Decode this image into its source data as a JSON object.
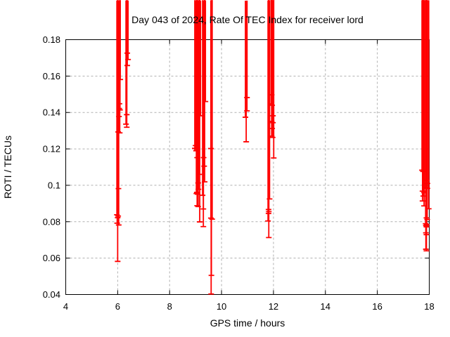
{
  "chart_data": {
    "type": "scatter",
    "title": "Day 043 of 2024, Rate Of TEC Index for receiver lord",
    "xlabel": "GPS time / hours",
    "ylabel": "ROTI / TECUs",
    "xlim": [
      4,
      18
    ],
    "ylim": [
      0.04,
      0.18
    ],
    "xticks": [
      4,
      6,
      8,
      10,
      12,
      14,
      16,
      18
    ],
    "yticks": [
      0.04,
      0.06,
      0.08,
      0.1,
      0.12,
      0.14,
      0.16,
      0.18
    ],
    "grid": true,
    "grid_style": "dashed",
    "legend": "none",
    "marker": "plus",
    "series": [
      {
        "name": "ROTI",
        "points": [
          [
            6.37,
            0.1726
          ],
          [
            6.4,
            0.1691
          ],
          [
            6.37,
            0.1658
          ],
          [
            6.1,
            0.1581
          ],
          [
            6.07,
            0.1448
          ],
          [
            6.06,
            0.1422
          ],
          [
            6.09,
            0.1414
          ],
          [
            6.35,
            0.1388
          ],
          [
            6.05,
            0.1378
          ],
          [
            6.32,
            0.1336
          ],
          [
            6.35,
            0.1319
          ],
          [
            6.02,
            0.1293
          ],
          [
            6.08,
            0.1288
          ],
          [
            6.03,
            0.0982
          ],
          [
            5.97,
            0.0838
          ],
          [
            6.02,
            0.0831
          ],
          [
            6.0,
            0.0822
          ],
          [
            5.98,
            0.0792
          ],
          [
            6.04,
            0.0782
          ],
          [
            6.0,
            0.0582
          ],
          [
            9.38,
            0.146
          ],
          [
            9.19,
            0.1382
          ],
          [
            9.07,
            0.1262
          ],
          [
            9.0,
            0.1218
          ],
          [
            9.07,
            0.1208
          ],
          [
            8.97,
            0.1203
          ],
          [
            9.05,
            0.1197
          ],
          [
            9.02,
            0.119
          ],
          [
            9.59,
            0.1202
          ],
          [
            9.06,
            0.1152
          ],
          [
            9.31,
            0.1152
          ],
          [
            9.33,
            0.1105
          ],
          [
            9.14,
            0.106
          ],
          [
            9.1,
            0.1013
          ],
          [
            9.35,
            0.1019
          ],
          [
            9.11,
            0.0978
          ],
          [
            9.05,
            0.0961
          ],
          [
            9.03,
            0.0955
          ],
          [
            9.08,
            0.0951
          ],
          [
            9.27,
            0.0945
          ],
          [
            9.06,
            0.0888
          ],
          [
            9.1,
            0.0883
          ],
          [
            9.3,
            0.087
          ],
          [
            9.59,
            0.082
          ],
          [
            9.64,
            0.0814
          ],
          [
            9.16,
            0.0799
          ],
          [
            9.3,
            0.0773
          ],
          [
            9.61,
            0.0505
          ],
          [
            9.6,
            0.0403
          ],
          [
            10.98,
            0.1482
          ],
          [
            10.98,
            0.1409
          ],
          [
            10.92,
            0.1374
          ],
          [
            10.95,
            0.1239
          ],
          [
            11.93,
            0.1497
          ],
          [
            11.91,
            0.1447
          ],
          [
            11.95,
            0.144
          ],
          [
            11.98,
            0.1382
          ],
          [
            11.93,
            0.1351
          ],
          [
            11.98,
            0.1344
          ],
          [
            11.95,
            0.1312
          ],
          [
            11.93,
            0.127
          ],
          [
            11.97,
            0.1263
          ],
          [
            12.01,
            0.115
          ],
          [
            11.85,
            0.0925
          ],
          [
            11.81,
            0.0867
          ],
          [
            11.82,
            0.0855
          ],
          [
            11.81,
            0.0845
          ],
          [
            11.79,
            0.0804
          ],
          [
            11.82,
            0.0713
          ],
          [
            17.72,
            0.1083
          ],
          [
            17.76,
            0.1076
          ],
          [
            17.91,
            0.1027
          ],
          [
            17.93,
            0.101
          ],
          [
            17.85,
            0.0987
          ],
          [
            17.93,
            0.0983
          ],
          [
            17.74,
            0.0968
          ],
          [
            17.8,
            0.096
          ],
          [
            17.77,
            0.0941
          ],
          [
            17.74,
            0.0914
          ],
          [
            17.8,
            0.0887
          ],
          [
            17.98,
            0.0871
          ],
          [
            17.89,
            0.0821
          ],
          [
            17.92,
            0.0812
          ],
          [
            17.86,
            0.0789
          ],
          [
            17.9,
            0.0783
          ],
          [
            17.87,
            0.0779
          ],
          [
            17.89,
            0.0772
          ],
          [
            17.87,
            0.0739
          ],
          [
            17.89,
            0.0729
          ],
          [
            17.87,
            0.0649
          ],
          [
            17.89,
            0.064
          ]
        ]
      }
    ]
  },
  "colors": {
    "background": "#ffffff",
    "point": "#ff0000",
    "border": "#000000",
    "grid": "#b0b0b0",
    "text": "#000000"
  }
}
